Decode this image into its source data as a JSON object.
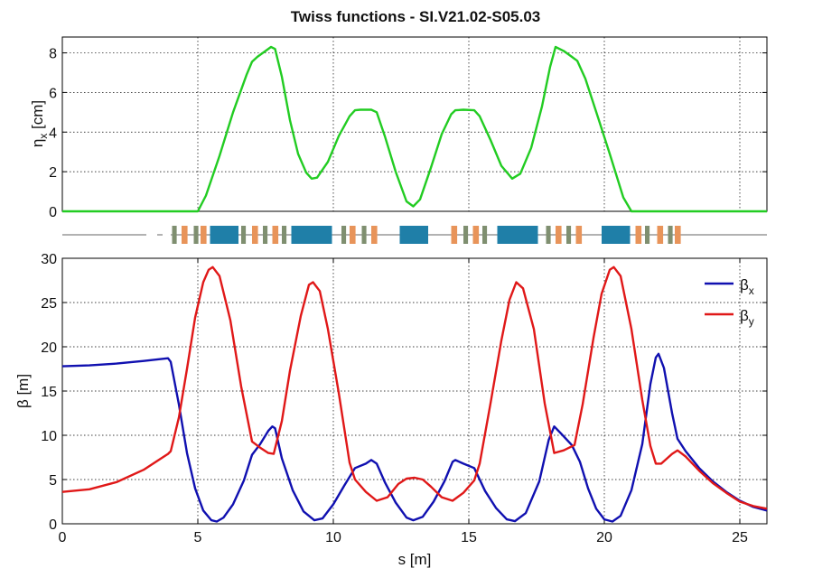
{
  "chart_data": [
    {
      "type": "line",
      "title": "Twiss functions - SI.V21.02-S05.03",
      "ylabel": "η",
      "ylabel_sub": "x",
      "ylabel_unit": "[cm]",
      "xlim": [
        0,
        26
      ],
      "ylim": [
        0,
        8.8
      ],
      "yticks": [
        0,
        2,
        4,
        6,
        8
      ],
      "xticks": [
        5,
        10,
        15,
        20,
        25
      ],
      "grid": true,
      "series": [
        {
          "color": "#22cc22",
          "points": [
            [
              0,
              0
            ],
            [
              5,
              0
            ],
            [
              5.3,
              0.8
            ],
            [
              5.8,
              2.8
            ],
            [
              6.3,
              5.0
            ],
            [
              6.8,
              6.9
            ],
            [
              7.0,
              7.55
            ],
            [
              7.2,
              7.8
            ],
            [
              7.5,
              8.1
            ],
            [
              7.7,
              8.3
            ],
            [
              7.85,
              8.2
            ],
            [
              8.1,
              6.8
            ],
            [
              8.4,
              4.6
            ],
            [
              8.7,
              2.9
            ],
            [
              9.0,
              1.95
            ],
            [
              9.2,
              1.65
            ],
            [
              9.4,
              1.7
            ],
            [
              9.8,
              2.5
            ],
            [
              10.2,
              3.8
            ],
            [
              10.6,
              4.8
            ],
            [
              10.8,
              5.1
            ],
            [
              11.0,
              5.13
            ],
            [
              11.4,
              5.13
            ],
            [
              11.6,
              5.0
            ],
            [
              11.9,
              3.8
            ],
            [
              12.3,
              2.0
            ],
            [
              12.7,
              0.5
            ],
            [
              12.95,
              0.25
            ],
            [
              13.2,
              0.6
            ],
            [
              13.6,
              2.2
            ],
            [
              14.0,
              3.9
            ],
            [
              14.35,
              4.9
            ],
            [
              14.5,
              5.1
            ],
            [
              14.8,
              5.13
            ],
            [
              15.2,
              5.1
            ],
            [
              15.4,
              4.8
            ],
            [
              15.8,
              3.6
            ],
            [
              16.2,
              2.3
            ],
            [
              16.6,
              1.65
            ],
            [
              16.9,
              1.9
            ],
            [
              17.3,
              3.2
            ],
            [
              17.7,
              5.3
            ],
            [
              18.0,
              7.3
            ],
            [
              18.2,
              8.3
            ],
            [
              18.5,
              8.1
            ],
            [
              18.8,
              7.8
            ],
            [
              19.0,
              7.6
            ],
            [
              19.3,
              6.7
            ],
            [
              19.8,
              4.6
            ],
            [
              20.2,
              2.9
            ],
            [
              20.7,
              0.7
            ],
            [
              21.0,
              0
            ],
            [
              26,
              0
            ]
          ]
        }
      ]
    },
    {
      "type": "line",
      "xlabel": "s [m]",
      "ylabel": "β [m]",
      "xlim": [
        0,
        26
      ],
      "ylim": [
        0,
        30
      ],
      "xticks": [
        0,
        5,
        10,
        15,
        20,
        25
      ],
      "yticks": [
        0,
        5,
        10,
        15,
        20,
        25,
        30
      ],
      "grid": true,
      "legend_position": "top-right",
      "series": [
        {
          "name": "β",
          "name_sub": "x",
          "color": "#1010b0",
          "points": [
            [
              0,
              17.8
            ],
            [
              1,
              17.9
            ],
            [
              2,
              18.1
            ],
            [
              3,
              18.4
            ],
            [
              3.9,
              18.7
            ],
            [
              4.0,
              18.3
            ],
            [
              4.3,
              13.5
            ],
            [
              4.6,
              8.0
            ],
            [
              4.9,
              4.0
            ],
            [
              5.2,
              1.5
            ],
            [
              5.5,
              0.4
            ],
            [
              5.7,
              0.25
            ],
            [
              5.95,
              0.7
            ],
            [
              6.3,
              2.2
            ],
            [
              6.7,
              4.9
            ],
            [
              7.0,
              7.8
            ],
            [
              7.3,
              9.0
            ],
            [
              7.6,
              10.5
            ],
            [
              7.75,
              11.0
            ],
            [
              7.85,
              10.8
            ],
            [
              8.1,
              7.4
            ],
            [
              8.5,
              3.8
            ],
            [
              8.9,
              1.4
            ],
            [
              9.3,
              0.4
            ],
            [
              9.6,
              0.6
            ],
            [
              10.0,
              2.2
            ],
            [
              10.4,
              4.3
            ],
            [
              10.8,
              6.3
            ],
            [
              11.2,
              6.8
            ],
            [
              11.4,
              7.2
            ],
            [
              11.6,
              6.8
            ],
            [
              11.9,
              4.7
            ],
            [
              12.3,
              2.4
            ],
            [
              12.7,
              0.7
            ],
            [
              12.95,
              0.4
            ],
            [
              13.3,
              0.8
            ],
            [
              13.7,
              2.5
            ],
            [
              14.1,
              4.8
            ],
            [
              14.4,
              7.0
            ],
            [
              14.5,
              7.2
            ],
            [
              14.8,
              6.8
            ],
            [
              15.2,
              6.3
            ],
            [
              15.6,
              3.7
            ],
            [
              16.0,
              1.8
            ],
            [
              16.4,
              0.5
            ],
            [
              16.7,
              0.3
            ],
            [
              17.1,
              1.2
            ],
            [
              17.6,
              4.8
            ],
            [
              17.95,
              9.5
            ],
            [
              18.15,
              11.0
            ],
            [
              18.4,
              10.2
            ],
            [
              18.8,
              8.9
            ],
            [
              19.1,
              7.0
            ],
            [
              19.4,
              4.0
            ],
            [
              19.7,
              1.7
            ],
            [
              20.0,
              0.5
            ],
            [
              20.3,
              0.25
            ],
            [
              20.6,
              0.9
            ],
            [
              21.0,
              3.8
            ],
            [
              21.4,
              9.0
            ],
            [
              21.7,
              15.8
            ],
            [
              21.9,
              18.8
            ],
            [
              22.0,
              19.2
            ],
            [
              22.2,
              17.6
            ],
            [
              22.5,
              12.5
            ],
            [
              22.7,
              9.6
            ],
            [
              23.0,
              8.2
            ],
            [
              23.5,
              6.3
            ],
            [
              24.0,
              4.8
            ],
            [
              24.5,
              3.6
            ],
            [
              25.0,
              2.6
            ],
            [
              25.5,
              1.9
            ],
            [
              26,
              1.5
            ]
          ]
        },
        {
          "name": "β",
          "name_sub": "y",
          "color": "#e01818",
          "points": [
            [
              0,
              3.6
            ],
            [
              1,
              3.9
            ],
            [
              2,
              4.7
            ],
            [
              3,
              6.1
            ],
            [
              3.9,
              7.9
            ],
            [
              4.0,
              8.2
            ],
            [
              4.3,
              12.0
            ],
            [
              4.6,
              17.5
            ],
            [
              4.9,
              23.3
            ],
            [
              5.2,
              27.3
            ],
            [
              5.4,
              28.7
            ],
            [
              5.55,
              29.0
            ],
            [
              5.8,
              28.0
            ],
            [
              6.2,
              23.0
            ],
            [
              6.6,
              15.5
            ],
            [
              7.0,
              9.3
            ],
            [
              7.3,
              8.6
            ],
            [
              7.6,
              8.0
            ],
            [
              7.8,
              7.9
            ],
            [
              8.1,
              11.6
            ],
            [
              8.4,
              17.3
            ],
            [
              8.8,
              23.5
            ],
            [
              9.1,
              27.0
            ],
            [
              9.25,
              27.3
            ],
            [
              9.5,
              26.3
            ],
            [
              9.8,
              22.0
            ],
            [
              10.2,
              14.8
            ],
            [
              10.6,
              6.9
            ],
            [
              10.8,
              5.0
            ],
            [
              11.2,
              3.6
            ],
            [
              11.6,
              2.6
            ],
            [
              12.0,
              3.0
            ],
            [
              12.4,
              4.5
            ],
            [
              12.7,
              5.1
            ],
            [
              13.0,
              5.2
            ],
            [
              13.3,
              5.0
            ],
            [
              13.6,
              4.2
            ],
            [
              14.0,
              3.0
            ],
            [
              14.4,
              2.6
            ],
            [
              14.8,
              3.5
            ],
            [
              15.2,
              4.9
            ],
            [
              15.4,
              6.8
            ],
            [
              15.8,
              13.6
            ],
            [
              16.2,
              20.7
            ],
            [
              16.5,
              25.3
            ],
            [
              16.75,
              27.3
            ],
            [
              17.0,
              26.6
            ],
            [
              17.4,
              22.0
            ],
            [
              17.8,
              13.6
            ],
            [
              18.15,
              8.0
            ],
            [
              18.5,
              8.3
            ],
            [
              18.9,
              8.9
            ],
            [
              19.2,
              13.5
            ],
            [
              19.6,
              21.0
            ],
            [
              19.9,
              26.0
            ],
            [
              20.2,
              28.7
            ],
            [
              20.35,
              29.0
            ],
            [
              20.6,
              28.0
            ],
            [
              21.0,
              22.0
            ],
            [
              21.4,
              14.0
            ],
            [
              21.7,
              8.8
            ],
            [
              21.9,
              6.8
            ],
            [
              22.1,
              6.8
            ],
            [
              22.5,
              7.9
            ],
            [
              22.7,
              8.3
            ],
            [
              23.0,
              7.6
            ],
            [
              23.5,
              6.0
            ],
            [
              24.0,
              4.6
            ],
            [
              24.5,
              3.5
            ],
            [
              25.0,
              2.5
            ],
            [
              25.5,
              2.0
            ],
            [
              26,
              1.7
            ]
          ]
        }
      ]
    }
  ],
  "lattice": {
    "colors": {
      "dipole": "#1f7fa8",
      "quadrupole": "#e8945a",
      "sextupole": "#7f8f70",
      "line": "#999999"
    },
    "line_segments": [
      [
        0,
        3.1
      ],
      [
        3.5,
        3.7
      ],
      [
        4.0,
        26
      ]
    ],
    "elements": [
      {
        "kind": "sextupole",
        "s": 4.05,
        "w": 0.17
      },
      {
        "kind": "quadrupole",
        "s": 4.4,
        "w": 0.22
      },
      {
        "kind": "sextupole",
        "s": 4.85,
        "w": 0.17
      },
      {
        "kind": "quadrupole",
        "s": 5.1,
        "w": 0.22
      },
      {
        "kind": "dipole",
        "s": 5.45,
        "w": 1.05
      },
      {
        "kind": "sextupole",
        "s": 6.6,
        "w": 0.17
      },
      {
        "kind": "quadrupole",
        "s": 7.0,
        "w": 0.22
      },
      {
        "kind": "sextupole",
        "s": 7.4,
        "w": 0.17
      },
      {
        "kind": "quadrupole",
        "s": 7.75,
        "w": 0.22
      },
      {
        "kind": "sextupole",
        "s": 8.1,
        "w": 0.17
      },
      {
        "kind": "dipole",
        "s": 8.45,
        "w": 1.5
      },
      {
        "kind": "sextupole",
        "s": 10.3,
        "w": 0.17
      },
      {
        "kind": "quadrupole",
        "s": 10.6,
        "w": 0.22
      },
      {
        "kind": "sextupole",
        "s": 11.05,
        "w": 0.17
      },
      {
        "kind": "quadrupole",
        "s": 11.4,
        "w": 0.22
      },
      {
        "kind": "dipole",
        "s": 12.45,
        "w": 1.05
      },
      {
        "kind": "quadrupole",
        "s": 14.35,
        "w": 0.22
      },
      {
        "kind": "sextupole",
        "s": 14.8,
        "w": 0.17
      },
      {
        "kind": "quadrupole",
        "s": 15.15,
        "w": 0.22
      },
      {
        "kind": "sextupole",
        "s": 15.5,
        "w": 0.17
      },
      {
        "kind": "dipole",
        "s": 16.05,
        "w": 1.5
      },
      {
        "kind": "sextupole",
        "s": 17.85,
        "w": 0.17
      },
      {
        "kind": "quadrupole",
        "s": 18.2,
        "w": 0.22
      },
      {
        "kind": "sextupole",
        "s": 18.6,
        "w": 0.17
      },
      {
        "kind": "quadrupole",
        "s": 18.95,
        "w": 0.22
      },
      {
        "kind": "dipole",
        "s": 19.9,
        "w": 1.05
      },
      {
        "kind": "quadrupole",
        "s": 21.15,
        "w": 0.22
      },
      {
        "kind": "sextupole",
        "s": 21.5,
        "w": 0.17
      },
      {
        "kind": "quadrupole",
        "s": 21.95,
        "w": 0.22
      },
      {
        "kind": "sextupole",
        "s": 22.35,
        "w": 0.17
      },
      {
        "kind": "quadrupole",
        "s": 22.6,
        "w": 0.22
      }
    ]
  }
}
